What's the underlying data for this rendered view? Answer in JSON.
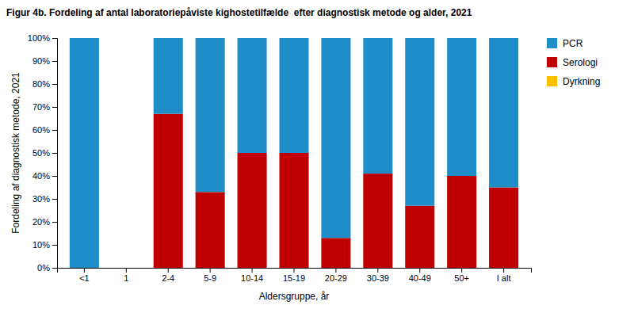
{
  "chart_data": {
    "type": "bar",
    "stacked": true,
    "title": "Figur 4b. Fordeling af antal laboratoriepåviste kighostetilfælde  efter diagnostisk metode og alder, 2021",
    "xlabel": "Aldersgruppe, år",
    "ylabel": "Fordeling af diagnostisk metode, 2021",
    "categories": [
      "<1",
      "1",
      "2-4",
      "5-9",
      "10-14",
      "15-19",
      "20-29",
      "30-39",
      "40-49",
      "50+",
      "I alt"
    ],
    "series": [
      {
        "name": "Dyrkning",
        "color": "#FFC000",
        "values": [
          0,
          0,
          0,
          0,
          0,
          0,
          0,
          0,
          0,
          0,
          0
        ]
      },
      {
        "name": "Serologi",
        "color": "#C00000",
        "values": [
          0,
          0,
          67,
          33,
          50,
          50,
          13,
          41,
          27,
          40,
          35
        ]
      },
      {
        "name": "PCR",
        "color": "#1F8DC8",
        "values": [
          100,
          0,
          33,
          67,
          50,
          50,
          87,
          59,
          73,
          60,
          65
        ]
      }
    ],
    "ylim": [
      0,
      100
    ],
    "yticks": [
      {
        "value": 0,
        "label": "0%"
      },
      {
        "value": 10,
        "label": "10%"
      },
      {
        "value": 20,
        "label": "20%"
      },
      {
        "value": 30,
        "label": "30%"
      },
      {
        "value": 40,
        "label": "40%"
      },
      {
        "value": 50,
        "label": "50%"
      },
      {
        "value": 60,
        "label": "60%"
      },
      {
        "value": 70,
        "label": "70%"
      },
      {
        "value": 80,
        "label": "80%"
      },
      {
        "value": 90,
        "label": "90%"
      },
      {
        "value": 100,
        "label": "100%"
      }
    ],
    "grid": false,
    "legend": "right"
  }
}
